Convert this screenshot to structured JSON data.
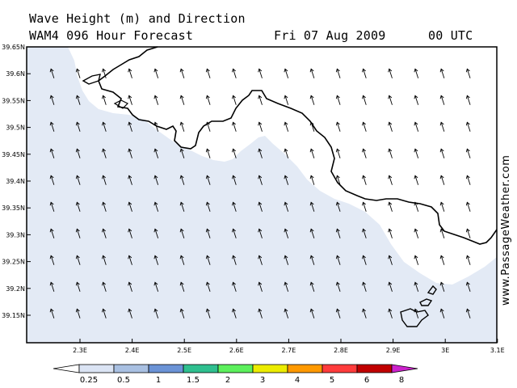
{
  "header": {
    "title": "Wave Height (m) and Direction",
    "model_line": "WAM4 096 Hour Forecast",
    "date": "Fri 07 Aug 2009",
    "time": "00 UTC"
  },
  "axes": {
    "lat_labels": [
      "39.65N",
      "39.6N",
      "39.55N",
      "39.5N",
      "39.45N",
      "39.4N",
      "39.35N",
      "39.3N",
      "39.25N",
      "39.2N",
      "39.15N"
    ],
    "lon_labels": [
      "2.3E",
      "2.4E",
      "2.5E",
      "2.6E",
      "2.7E",
      "2.8E",
      "2.9E",
      "3E",
      "3.1E"
    ]
  },
  "colorbar": {
    "labels": [
      "0.25",
      "0.5",
      "1",
      "1.5",
      "2",
      "3",
      "4",
      "5",
      "6",
      "8"
    ],
    "colors": [
      "#ffffff",
      "#dbe4f4",
      "#a9c0e2",
      "#6b93d6",
      "#2fbf8f",
      "#5cf05c",
      "#ecec00",
      "#ff9900",
      "#ff3c3c",
      "#c00000",
      "#cc22cc"
    ]
  },
  "map": {
    "sea_color": "#e3eaf5",
    "land_color": "#ffffff",
    "arrow_direction": "north-northwest"
  },
  "watermark": "www.PassageWeather.com"
}
